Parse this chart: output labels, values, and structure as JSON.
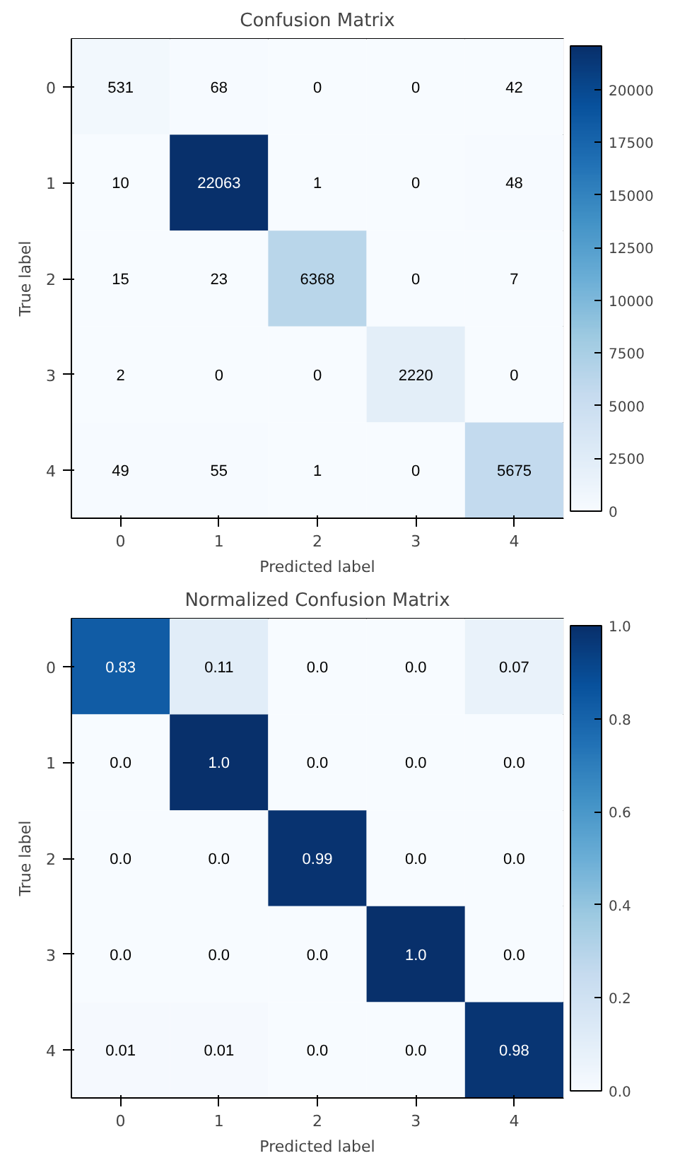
{
  "chart_data": [
    {
      "type": "heatmap",
      "title": "Confusion Matrix",
      "xlabel": "Predicted label",
      "ylabel": "True label",
      "categories": [
        "0",
        "1",
        "2",
        "3",
        "4"
      ],
      "y_categories": [
        "0",
        "1",
        "2",
        "3",
        "4"
      ],
      "cells": [
        [
          531,
          68,
          0,
          0,
          42
        ],
        [
          10,
          22063,
          1,
          0,
          48
        ],
        [
          15,
          23,
          6368,
          0,
          7
        ],
        [
          2,
          0,
          0,
          2220,
          0
        ],
        [
          49,
          55,
          1,
          0,
          5675
        ]
      ],
      "data_labels": true,
      "clim": [
        0,
        22063
      ],
      "cticks": [
        0,
        2500,
        5000,
        7500,
        10000,
        12500,
        15000,
        17500,
        20000
      ]
    },
    {
      "type": "heatmap",
      "title": "Normalized Confusion Matrix",
      "xlabel": "Predicted label",
      "ylabel": "True label",
      "categories": [
        "0",
        "1",
        "2",
        "3",
        "4"
      ],
      "y_categories": [
        "0",
        "1",
        "2",
        "3",
        "4"
      ],
      "cells": [
        [
          0.83,
          0.11,
          0.0,
          0.0,
          0.07
        ],
        [
          0.0,
          1.0,
          0.0,
          0.0,
          0.0
        ],
        [
          0.0,
          0.0,
          0.99,
          0.0,
          0.0
        ],
        [
          0.0,
          0.0,
          0.0,
          1.0,
          0.0
        ],
        [
          0.01,
          0.01,
          0.0,
          0.0,
          0.98
        ]
      ],
      "cell_labels": [
        [
          "0.83",
          "0.11",
          "0.0",
          "0.0",
          "0.07"
        ],
        [
          "0.0",
          "1.0",
          "0.0",
          "0.0",
          "0.0"
        ],
        [
          "0.0",
          "0.0",
          "0.99",
          "0.0",
          "0.0"
        ],
        [
          "0.0",
          "0.0",
          "0.0",
          "1.0",
          "0.0"
        ],
        [
          "0.01",
          "0.01",
          "0.0",
          "0.0",
          "0.98"
        ]
      ],
      "clim": [
        0,
        1.0
      ],
      "cticks": [
        {
          "value": 0,
          "label": "0.0"
        },
        {
          "value": 0.2,
          "label": "0.2"
        },
        {
          "value": 0.4,
          "label": "0.4"
        },
        {
          "value": 0.6,
          "label": "0.6"
        },
        {
          "value": 0.8,
          "label": "0.8"
        },
        {
          "value": 1.0,
          "label": "1.0"
        }
      ]
    }
  ]
}
